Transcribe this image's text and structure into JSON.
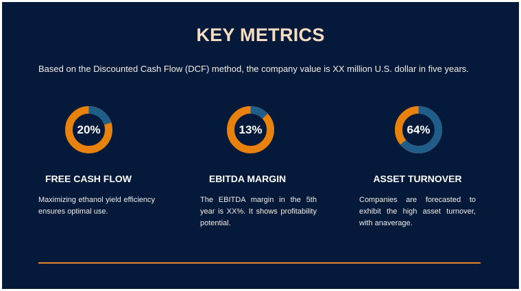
{
  "title": "KEY METRICS",
  "intro": "Based on the Discounted Cash Flow (DCF) method, the company value is XX million U.S. dollar in five years.",
  "colors": {
    "background": "#051a3a",
    "accent": "#e8820c",
    "ring_track": "#1f5d8a",
    "title": "#f6ddc2"
  },
  "metrics": [
    {
      "value_label": "20%",
      "value": 20,
      "heading": "FREE CASH FLOW",
      "description": "Maximizing ethanol yield efficiency ensures optimal use."
    },
    {
      "value_label": "13%",
      "value": 13,
      "heading": "EBITDA MARGIN",
      "description": "The EBITDA margin in the 5th year is XX%. It shows profitability potential."
    },
    {
      "value_label": "64%",
      "value": 64,
      "heading": "ASSET TURNOVER",
      "description": "Companies are forecasted to exhibit the high asset turnover, with anaverage."
    }
  ]
}
